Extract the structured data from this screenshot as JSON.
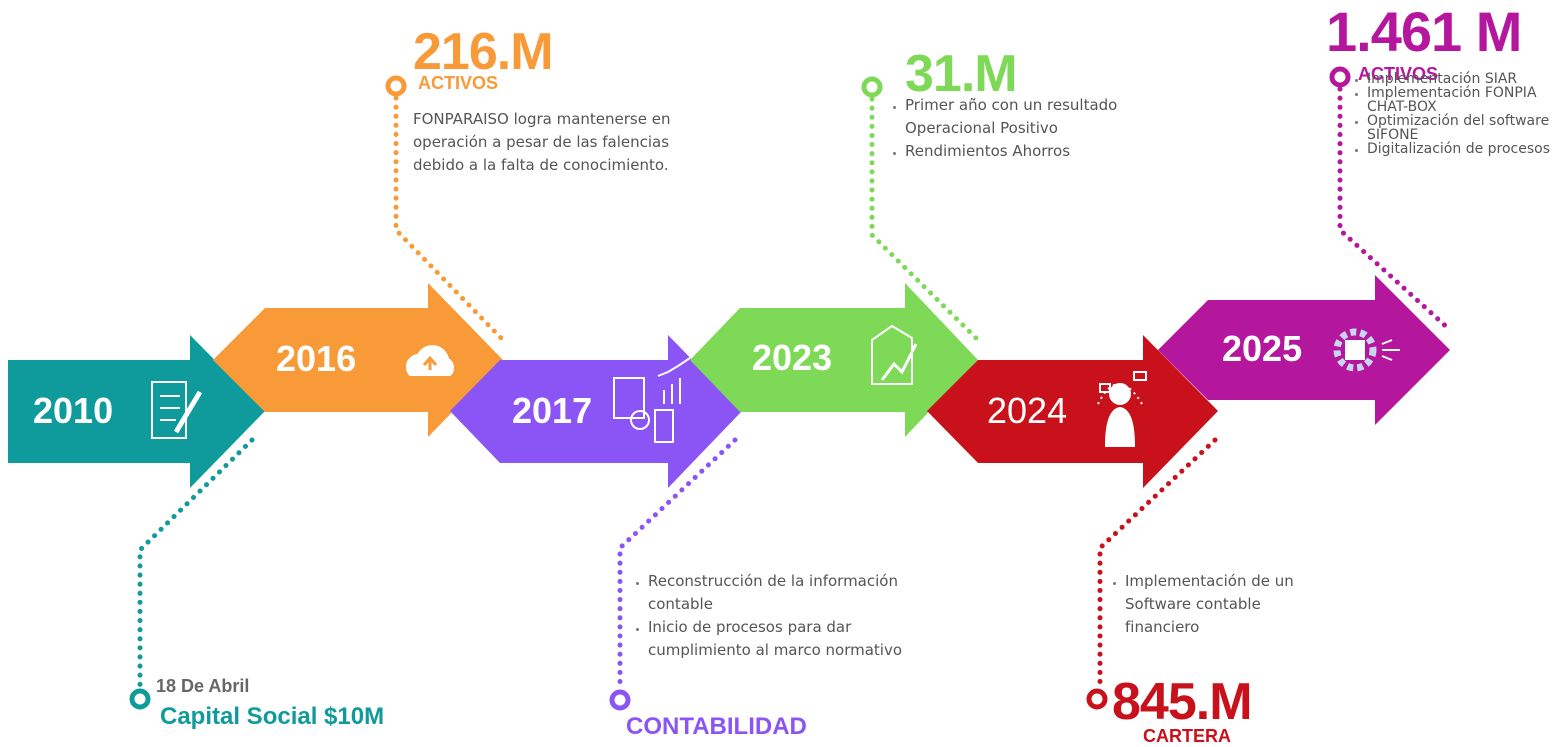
{
  "milestones": [
    {
      "year": "2010",
      "date": "18 De Abril",
      "caption": "Capital Social $10M"
    },
    {
      "year": "2016",
      "amount": "216.M",
      "label": "ACTIVOS",
      "text": "FONPARAISO logra mantenerse en operación a pesar de las falencias debido a la falta de conocimiento."
    },
    {
      "year": "2017",
      "label": "CONTABILIDAD",
      "bullets": [
        "Reconstrucción de la información contable",
        "Inicio de procesos para dar cumplimiento al marco normativo"
      ]
    },
    {
      "year": "2023",
      "amount": "31.M",
      "bullets": [
        "Primer año con un resultado Operacional Positivo",
        "Rendimientos Ahorros"
      ]
    },
    {
      "year": "2024",
      "amount": "845.M",
      "label": "CARTERA",
      "bullets": [
        "Implementación de un Software contable financiero"
      ]
    },
    {
      "year": "2025",
      "amount": "1.461 M",
      "label": "ACTIVOS",
      "bullets": [
        "Implementación SIAR",
        "Implementación FONPIA CHAT-BOX",
        "Optimización del software SIFONE",
        "Digitalización de procesos"
      ]
    }
  ]
}
